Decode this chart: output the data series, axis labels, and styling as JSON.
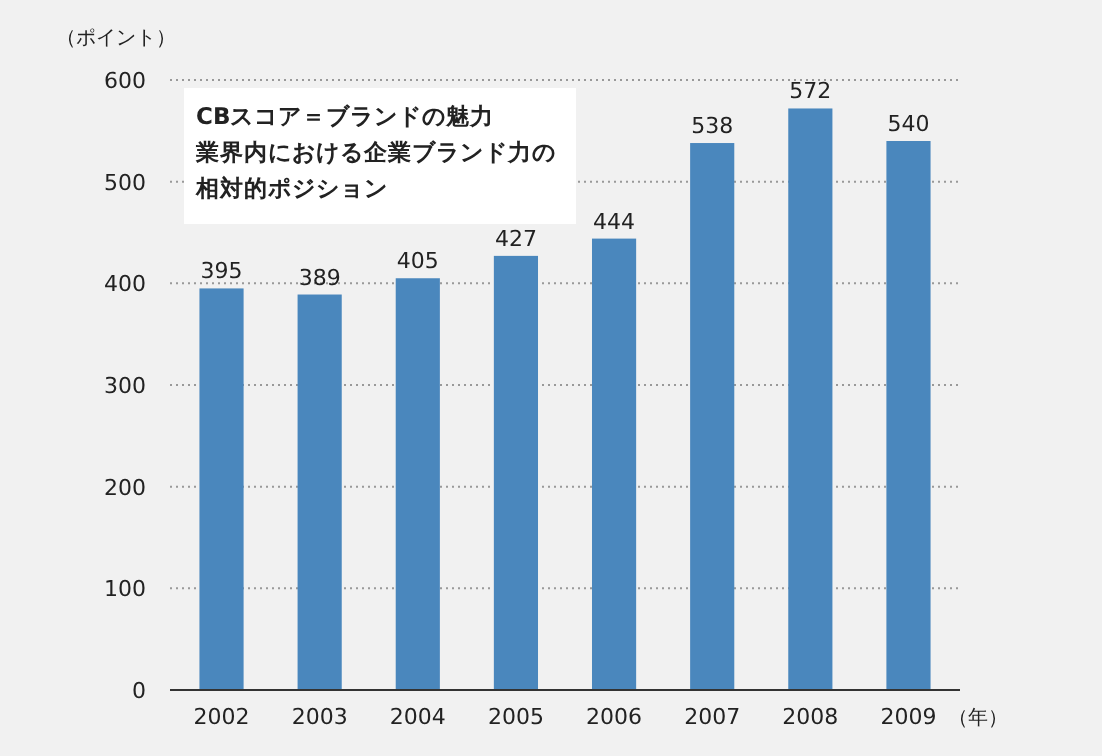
{
  "chart_data": {
    "type": "bar",
    "ylabel": "（ポイント）",
    "xlabel": "（年）",
    "categories": [
      "2002",
      "2003",
      "2004",
      "2005",
      "2006",
      "2007",
      "2008",
      "2009"
    ],
    "values": [
      395,
      389,
      405,
      427,
      444,
      538,
      572,
      540
    ],
    "color": "#4a87bd",
    "ylim": [
      0,
      600
    ],
    "yticks": [
      0,
      100,
      200,
      300,
      400,
      500,
      600
    ],
    "grid": "y",
    "data_labels": true,
    "annotations": [
      "CBスコア＝ブランドの魅力",
      "業界内における企業ブランド力の",
      "相対的ポジション"
    ]
  }
}
